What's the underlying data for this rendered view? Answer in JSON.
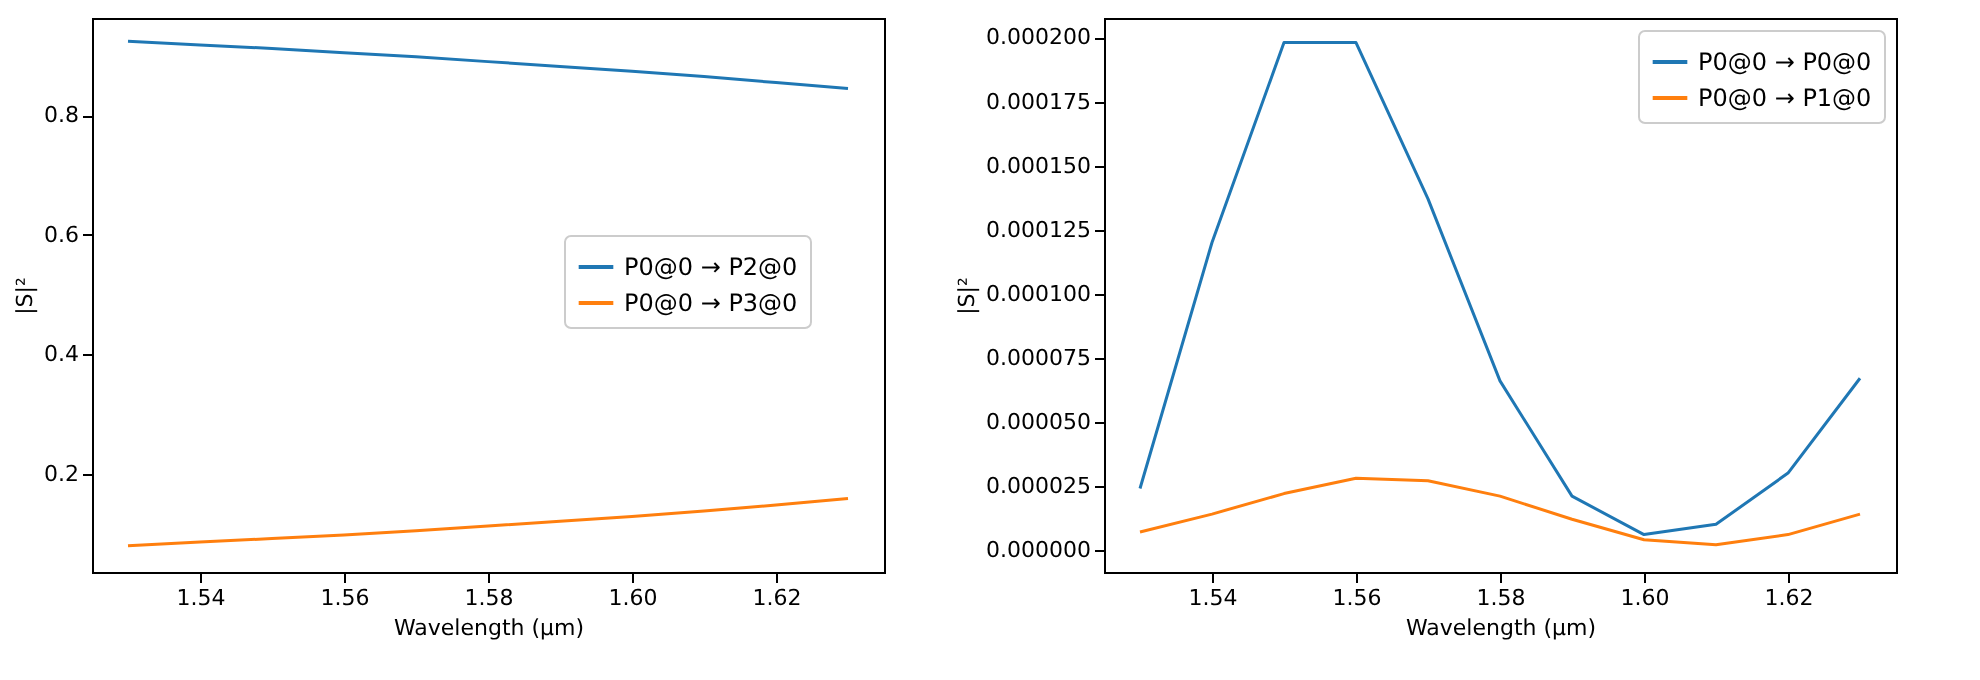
{
  "chart_data": [
    {
      "type": "line",
      "xlabel": "Wavelength (µm)",
      "ylabel": "|S|²",
      "x": [
        1.53,
        1.54,
        1.55,
        1.56,
        1.57,
        1.58,
        1.59,
        1.6,
        1.61,
        1.62,
        1.63
      ],
      "xlim": [
        1.525,
        1.635
      ],
      "xticks": [
        1.54,
        1.56,
        1.58,
        {
          "value": 1.6,
          "label": "1.60"
        },
        1.62
      ],
      "ylim": [
        0.036,
        0.963
      ],
      "yticks": [
        0.2,
        0.4,
        0.6,
        0.8
      ],
      "grid": false,
      "legend": "right",
      "line_style": "solid",
      "marker": "none",
      "series": [
        {
          "name": "P0@0 → P2@0",
          "color": "#1f77b4",
          "values": [
            0.924,
            0.918,
            0.912,
            0.905,
            0.898,
            0.89,
            0.882,
            0.874,
            0.865,
            0.855,
            0.845
          ]
        },
        {
          "name": "P0@0 → P3@0",
          "color": "#ff7f0e",
          "values": [
            0.08,
            0.086,
            0.092,
            0.098,
            0.105,
            0.113,
            0.121,
            0.129,
            0.138,
            0.148,
            0.159
          ]
        }
      ]
    },
    {
      "type": "line",
      "xlabel": "Wavelength (µm)",
      "ylabel": "|S|²",
      "x": [
        1.53,
        1.54,
        1.55,
        1.56,
        1.57,
        1.58,
        1.59,
        1.6,
        1.61,
        1.62,
        1.63
      ],
      "xlim": [
        1.525,
        1.635
      ],
      "xticks": [
        1.54,
        1.56,
        1.58,
        {
          "value": 1.6,
          "label": "1.60"
        },
        1.62
      ],
      "ylim": [
        -8.6e-06,
        0.0002076
      ],
      "yticks": [
        {
          "value": 0,
          "label": "0.000000"
        },
        {
          "value": 2.5e-05,
          "label": "0.000025"
        },
        {
          "value": 5e-05,
          "label": "0.000050"
        },
        {
          "value": 7.5e-05,
          "label": "0.000075"
        },
        {
          "value": 0.0001,
          "label": "0.000100"
        },
        {
          "value": 0.000125,
          "label": "0.000125"
        },
        {
          "value": 0.00015,
          "label": "0.000150"
        },
        {
          "value": 0.000175,
          "label": "0.000175"
        },
        {
          "value": 0.0002,
          "label": "0.000200"
        }
      ],
      "grid": false,
      "legend": "top right",
      "line_style": "solid",
      "marker": "none",
      "series": [
        {
          "name": "P0@0 → P0@0",
          "color": "#1f77b4",
          "values": [
            2.4e-05,
            0.00012,
            0.000198,
            0.000198,
            0.000137,
            6.6e-05,
            2.1e-05,
            6e-06,
            1e-05,
            3e-05,
            6.7e-05
          ]
        },
        {
          "name": "P0@0 → P1@0",
          "color": "#ff7f0e",
          "values": [
            7e-06,
            1.4e-05,
            2.2e-05,
            2.8e-05,
            2.7e-05,
            2.1e-05,
            1.2e-05,
            4e-06,
            2e-06,
            6e-06,
            1.4e-05
          ]
        }
      ]
    }
  ]
}
